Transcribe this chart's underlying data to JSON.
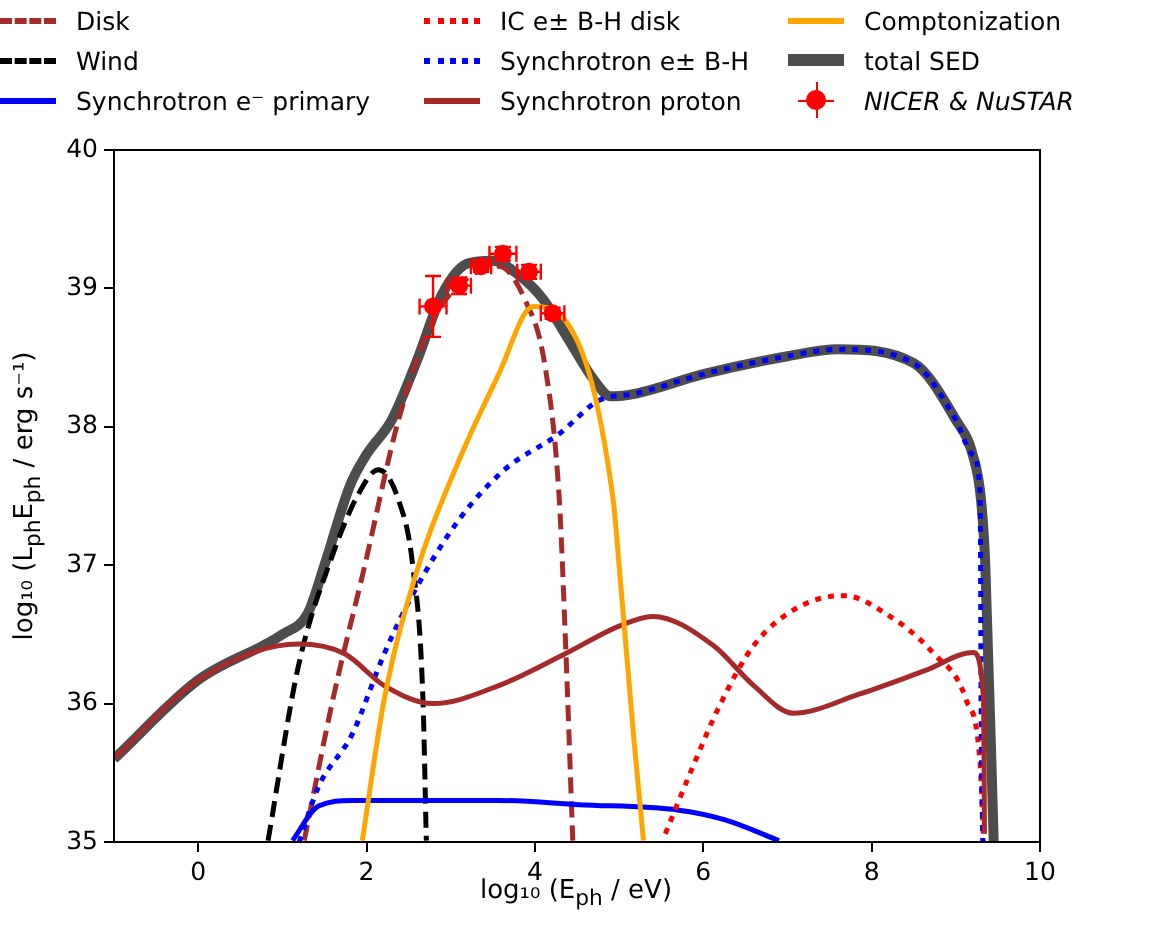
{
  "chart_data": {
    "type": "line",
    "xlabel": "log₁₀ (E$_{ph}$ / eV)",
    "ylabel": "log₁₀ (L$_{ph}$E$_{ph}$ / erg s⁻¹)",
    "xlim": [
      -1,
      10
    ],
    "ylim": [
      35,
      40
    ],
    "xticks": [
      0,
      2,
      4,
      6,
      8,
      10
    ],
    "yticks": [
      35,
      36,
      37,
      38,
      39,
      40
    ],
    "grid": false,
    "legend": "top",
    "series": [
      {
        "name": "Disk",
        "type": "line",
        "line_style": "dashed",
        "color": "#a52a2a",
        "x": [
          1.26,
          1.6,
          1.98,
          2.38,
          2.79,
          3.26,
          3.57,
          3.88,
          4.12,
          4.29,
          4.36,
          4.45
        ],
        "values": [
          35.01,
          36.03,
          37.0,
          38.05,
          38.77,
          39.1,
          39.16,
          38.92,
          38.44,
          37.47,
          36.5,
          35.01
        ]
      },
      {
        "name": "Wind",
        "type": "line",
        "line_style": "dashed",
        "color": "#000000",
        "x": [
          0.83,
          1.19,
          1.6,
          1.9,
          2.14,
          2.38,
          2.55,
          2.67,
          2.71
        ],
        "values": [
          35.01,
          36.27,
          37.08,
          37.51,
          37.69,
          37.47,
          36.99,
          36.03,
          35.01
        ]
      },
      {
        "name": "Synchrotron e⁻ primary",
        "type": "line",
        "line_style": "solid",
        "color": "#0000ff",
        "x": [
          1.12,
          1.43,
          1.83,
          3.57,
          4.52,
          5.71,
          6.26,
          6.9
        ],
        "values": [
          35.01,
          35.26,
          35.3,
          35.3,
          35.27,
          35.23,
          35.16,
          35.01
        ]
      },
      {
        "name": "IC e± B-H disk",
        "type": "line",
        "line_style": "dotted",
        "color": "#ff0000",
        "x": [
          5.55,
          5.88,
          6.19,
          6.6,
          7.14,
          7.67,
          8.17,
          8.74,
          9.12,
          9.29,
          9.33
        ],
        "values": [
          35.06,
          35.55,
          35.98,
          36.42,
          36.7,
          36.78,
          36.65,
          36.36,
          36.03,
          35.55,
          35.0
        ]
      },
      {
        "name": "Synchrotron e± B-H",
        "type": "line",
        "line_style": "dotted",
        "color": "#0000ff",
        "x": [
          1.2,
          1.43,
          1.83,
          2.21,
          2.55,
          3.1,
          3.64,
          4.29,
          4.76,
          5.2,
          6,
          7,
          7.6,
          8.5,
          9,
          9.2,
          9.29,
          9.3,
          9.32
        ],
        "values": [
          35.0,
          35.4,
          35.78,
          36.36,
          36.79,
          37.33,
          37.69,
          37.95,
          38.19,
          38.24,
          38.38,
          38.51,
          38.56,
          38.46,
          38.05,
          37.8,
          37.5,
          36.0,
          35.0
        ]
      },
      {
        "name": "Synchrotron proton",
        "type": "line",
        "line_style": "solid",
        "color": "#a52a2a",
        "x": [
          -1,
          0,
          1.19,
          1.74,
          2.21,
          2.79,
          3.57,
          4.36,
          5.0,
          5.4,
          6.12,
          6.6,
          7.07,
          7.86,
          8.64,
          9.21,
          9.33,
          9.34
        ],
        "values": [
          35.6,
          36.17,
          36.43,
          36.36,
          36.13,
          36.0,
          36.13,
          36.36,
          36.56,
          36.63,
          36.42,
          36.13,
          35.93,
          36.07,
          36.24,
          36.37,
          36.03,
          35.06
        ]
      },
      {
        "name": "Comptonization",
        "type": "line",
        "line_style": "solid",
        "color": "#ffa500",
        "x": [
          1.95,
          2.21,
          2.62,
          3.1,
          3.57,
          3.98,
          4.36,
          4.93,
          5.0,
          5.17,
          5.29
        ],
        "values": [
          35.01,
          36.03,
          37.0,
          37.76,
          38.38,
          38.87,
          38.77,
          37.47,
          37.0,
          35.78,
          35.01
        ]
      },
      {
        "name": "total SED",
        "line_style": "solid",
        "color": "#4d4d4d",
        "x": [
          -1,
          0,
          1,
          1.3,
          1.5,
          1.8,
          2.0,
          2.3,
          2.6,
          2.9,
          3.2,
          3.5,
          3.8,
          4.1,
          4.4,
          4.7,
          4.9,
          5.2,
          6,
          7,
          7.6,
          8.5,
          9,
          9.2,
          9.3,
          9.35,
          9.45
        ],
        "values": [
          35.6,
          36.17,
          36.5,
          36.65,
          37.0,
          37.57,
          37.8,
          38.05,
          38.48,
          38.96,
          39.18,
          39.2,
          39.1,
          38.92,
          38.63,
          38.34,
          38.22,
          38.24,
          38.38,
          38.51,
          38.56,
          38.46,
          38.05,
          37.8,
          37.47,
          37.0,
          35.0
        ]
      },
      {
        "name": "NICER & NuSTAR",
        "type": "scatter",
        "marker": "circle",
        "color": "#ff0000",
        "x": [
          2.79,
          3.1,
          3.36,
          3.62,
          3.93,
          4.21
        ],
        "values": [
          38.87,
          39.02,
          39.16,
          39.25,
          39.12,
          38.82
        ],
        "errors": [
          0.22,
          0.06,
          0.04,
          0.05,
          0.05,
          0.04
        ],
        "xerrors": [
          0.16,
          0.14,
          0.12,
          0.16,
          0.14,
          0.14
        ]
      }
    ]
  }
}
